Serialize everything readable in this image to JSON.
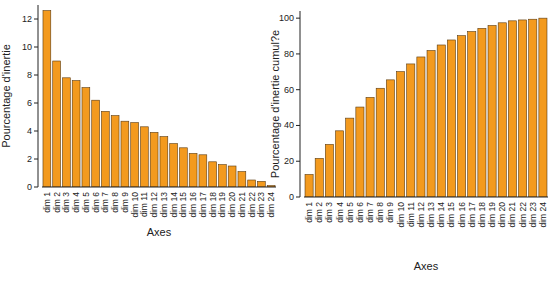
{
  "chart_data": [
    {
      "type": "bar",
      "y_label": "Pourcentage d'inertie",
      "x_label": "Axes",
      "categories": [
        "dim 1",
        "dim 2",
        "dim 3",
        "dim 4",
        "dim 5",
        "dim 6",
        "dim 7",
        "dim 8",
        "dim 9",
        "dim 10",
        "dim 11",
        "dim 12",
        "dim 13",
        "dim 14",
        "dim 15",
        "dim 16",
        "dim 17",
        "dim 18",
        "dim 19",
        "dim 20",
        "dim 21",
        "dim 22",
        "dim 23",
        "dim 24"
      ],
      "values": [
        12.6,
        9.0,
        7.8,
        7.6,
        7.1,
        6.2,
        5.4,
        5.1,
        4.7,
        4.6,
        4.3,
        3.9,
        3.6,
        3.1,
        2.8,
        2.4,
        2.3,
        1.8,
        1.6,
        1.5,
        1.1,
        0.5,
        0.4,
        0.1
      ],
      "color": "#f39a1e",
      "ylim": [
        0,
        13
      ],
      "yticks": [
        0,
        2,
        4,
        6,
        8,
        10,
        12
      ],
      "grid": false
    },
    {
      "type": "bar",
      "y_label": "Pourcentage d'inertie cumul?e",
      "x_label": "Axes",
      "categories": [
        "dim 1",
        "dim 2",
        "dim 3",
        "dim 4",
        "dim 5",
        "dim 6",
        "dim 7",
        "dim 8",
        "dim 9",
        "dim 10",
        "dim 11",
        "dim 12",
        "dim 13",
        "dim 14",
        "dim 15",
        "dim 16",
        "dim 17",
        "dim 18",
        "dim 19",
        "dim 20",
        "dim 21",
        "dim 22",
        "dim 23",
        "dim 24"
      ],
      "values": [
        12.6,
        21.6,
        29.4,
        37.0,
        44.1,
        50.3,
        55.7,
        60.8,
        65.5,
        70.1,
        74.4,
        78.3,
        81.9,
        85.0,
        87.8,
        90.2,
        92.5,
        94.3,
        95.9,
        97.4,
        98.5,
        99.0,
        99.4,
        100
      ],
      "color": "#f39a1e",
      "ylim": [
        0,
        104
      ],
      "yticks": [
        0,
        20,
        40,
        60,
        80,
        100
      ],
      "grid": false
    }
  ]
}
